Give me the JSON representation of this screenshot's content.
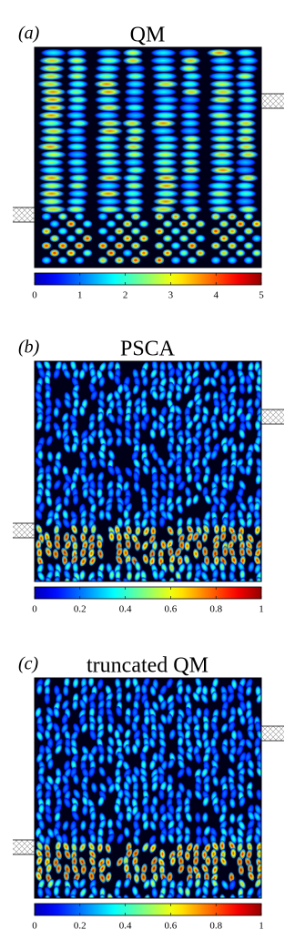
{
  "chart_data": [
    {
      "type": "heatmap",
      "panel_label": "(a)",
      "title": "QM",
      "clim": [
        0,
        5
      ],
      "cticks": [
        0,
        1,
        2,
        3,
        4,
        5
      ]
    },
    {
      "type": "heatmap",
      "panel_label": "(b)",
      "title": "PSCA",
      "clim": [
        0,
        1
      ],
      "cticks": [
        0,
        0.2,
        0.4,
        0.6,
        0.8,
        1
      ]
    },
    {
      "type": "heatmap",
      "panel_label": "(c)",
      "title": "truncated QM",
      "clim": [
        0,
        1
      ],
      "cticks": [
        0,
        0.2,
        0.4,
        0.6,
        0.8,
        1
      ]
    }
  ]
}
